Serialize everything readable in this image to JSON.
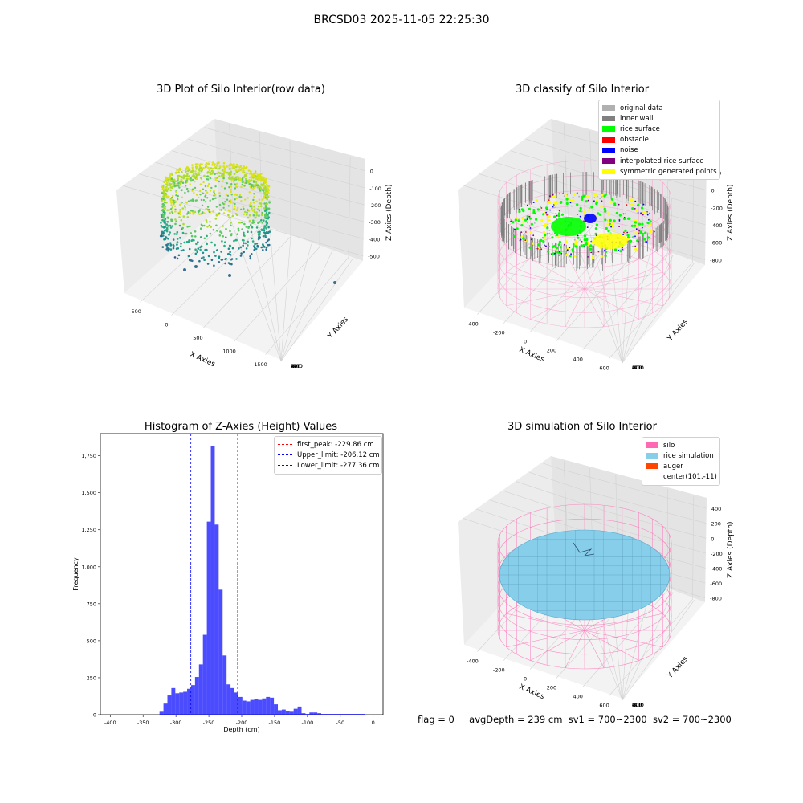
{
  "figure_title": "BRCSD03 2025-11-05 22:25:30",
  "footer": {
    "flag": "flag = 0",
    "avg_depth": "avgDepth = 239 cm",
    "sv1": "sv1 = 700~2300",
    "sv2": "sv2 = 700~2300"
  },
  "chart_data": [
    {
      "type": "scatter",
      "title": "3D Plot of Silo Interior(row data)",
      "xlabel": "X Axies",
      "ylabel": "Y Axies",
      "zlabel": "Z Axies (Depth)",
      "x_ticks": [
        "-500",
        "0",
        "500",
        "1000",
        "1500"
      ],
      "y_ticks": [
        "600",
        "400",
        "200",
        "0",
        "-200",
        "-400",
        "-600"
      ],
      "z_ticks": [
        "0",
        "-100",
        "-200",
        "-300",
        "-400",
        "-500"
      ],
      "colormap": "viridis",
      "grid": true
    },
    {
      "type": "scatter",
      "title": "3D classify of Silo Interior",
      "xlabel": "X Axies",
      "ylabel": "Y Axies",
      "zlabel": "Z Axies (Depth)",
      "x_ticks": [
        "-400",
        "-200",
        "0",
        "200",
        "400",
        "600"
      ],
      "y_ticks": [
        "600",
        "400",
        "200",
        "0",
        "-200",
        "-400",
        "-600"
      ],
      "z_ticks": [
        "200",
        "0",
        "-200",
        "-400",
        "-600",
        "-800"
      ],
      "legend_position": "top-right",
      "legend": [
        {
          "label": "original data",
          "color": "#b0b0b0"
        },
        {
          "label": "inner wall",
          "color": "#808080"
        },
        {
          "label": "rice surface",
          "color": "#00ff00"
        },
        {
          "label": "obstacle",
          "color": "#ff0000"
        },
        {
          "label": "noise",
          "color": "#0000ff"
        },
        {
          "label": "interpolated rice surface",
          "color": "#800080"
        },
        {
          "label": "symmetric generated points",
          "color": "#ffff00"
        }
      ],
      "grid": true
    },
    {
      "type": "bar",
      "title": "Histogram of Z-Axies (Height) Values",
      "xlabel": "Depth (cm)",
      "ylabel": "Frequency",
      "xlim": [
        -415,
        15
      ],
      "ylim": [
        0,
        1900
      ],
      "x_ticks": [
        -400,
        -350,
        -300,
        -250,
        -200,
        -150,
        -100,
        -50,
        0
      ],
      "y_ticks": [
        0,
        250,
        500,
        750,
        1000,
        1250,
        1500,
        1750
      ],
      "bin_width": 6,
      "bin_starts": [
        -325,
        -319,
        -313,
        -307,
        -301,
        -295,
        -289,
        -283,
        -277,
        -271,
        -265,
        -259,
        -253,
        -247,
        -241,
        -235,
        -229,
        -223,
        -217,
        -211,
        -205,
        -199,
        -193,
        -187,
        -181,
        -175,
        -169,
        -163,
        -157,
        -151,
        -145,
        -139,
        -133,
        -127,
        -121,
        -115,
        -109,
        -103,
        -97,
        -91,
        -85,
        -79,
        -73,
        -67,
        -61,
        -55,
        -49,
        -43,
        -37,
        -31,
        -25,
        -19
      ],
      "values": [
        20,
        75,
        130,
        180,
        145,
        150,
        155,
        175,
        200,
        255,
        340,
        540,
        1305,
        1815,
        1285,
        845,
        400,
        205,
        180,
        150,
        120,
        95,
        90,
        100,
        105,
        100,
        110,
        120,
        115,
        70,
        30,
        35,
        25,
        20,
        40,
        55,
        10,
        5,
        15,
        15,
        10,
        5,
        5,
        5,
        5,
        5,
        5,
        5,
        5,
        5,
        5,
        5
      ],
      "bar_color": "#0000ff",
      "vlines": [
        {
          "label": "first_peak: -229.86 cm",
          "x": -229.86,
          "color": "#ff0000"
        },
        {
          "label": "Upper_limit: -206.12 cm",
          "x": -206.12,
          "color": "#0000ff"
        },
        {
          "label": "Lower_limit: -277.36 cm",
          "x": -277.36,
          "color": "#0000ff"
        }
      ],
      "legend_position": "top-right"
    },
    {
      "type": "scatter",
      "title": "3D simulation of Silo Interior",
      "xlabel": "X Axies",
      "ylabel": "Y Axies",
      "zlabel": "Z Axies (Depth)",
      "x_ticks": [
        "-400",
        "-200",
        "0",
        "200",
        "400",
        "600"
      ],
      "y_ticks": [
        "600",
        "400",
        "200",
        "0",
        "-200",
        "-400",
        "-600"
      ],
      "z_ticks": [
        "400",
        "200",
        "0",
        "-200",
        "-400",
        "-600",
        "-800"
      ],
      "legend_position": "top-right",
      "legend": [
        {
          "label": "silo",
          "color": "#ff69b4"
        },
        {
          "label": "rice simulation",
          "color": "#87ceeb"
        },
        {
          "label": "auger",
          "color": "#ff4500"
        },
        {
          "label": "center(101,-11)",
          "color": ""
        }
      ],
      "grid": true
    }
  ]
}
